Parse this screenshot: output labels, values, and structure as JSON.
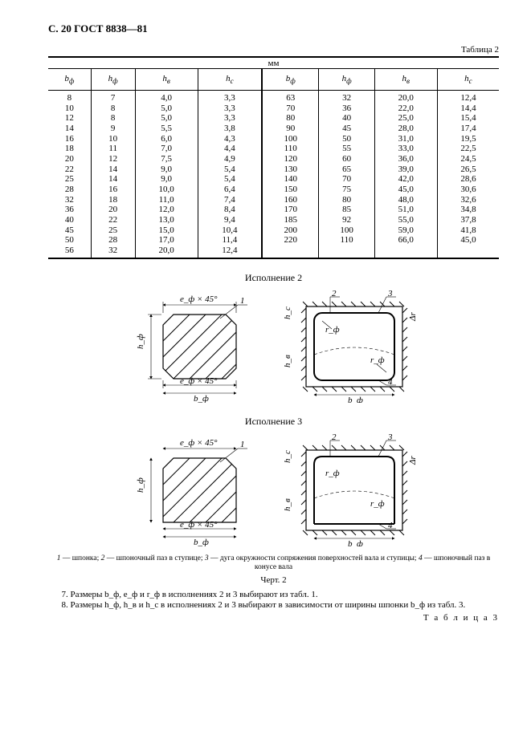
{
  "header": "С. 20 ГОСТ 8838—81",
  "table2": {
    "label": "Таблица 2",
    "unit": "мм",
    "columns": [
      "b_ф",
      "h_ф",
      "h_в",
      "h_с",
      "b_ф",
      "h_ф",
      "h_в",
      "h_с"
    ],
    "rows": [
      [
        "8",
        "7",
        "4,0",
        "3,3",
        "63",
        "32",
        "20,0",
        "12,4"
      ],
      [
        "10",
        "8",
        "5,0",
        "3,3",
        "70",
        "36",
        "22,0",
        "14,4"
      ],
      [
        "12",
        "8",
        "5,0",
        "3,3",
        "80",
        "40",
        "25,0",
        "15,4"
      ],
      [
        "14",
        "9",
        "5,5",
        "3,8",
        "90",
        "45",
        "28,0",
        "17,4"
      ],
      [
        "16",
        "10",
        "6,0",
        "4,3",
        "100",
        "50",
        "31,0",
        "19,5"
      ],
      [
        "18",
        "11",
        "7,0",
        "4,4",
        "110",
        "55",
        "33,0",
        "22,5"
      ],
      [
        "20",
        "12",
        "7,5",
        "4,9",
        "120",
        "60",
        "36,0",
        "24,5"
      ],
      [
        "22",
        "14",
        "9,0",
        "5,4",
        "130",
        "65",
        "39,0",
        "26,5"
      ],
      [
        "25",
        "14",
        "9,0",
        "5,4",
        "140",
        "70",
        "42,0",
        "28,6"
      ],
      [
        "28",
        "16",
        "10,0",
        "6,4",
        "150",
        "75",
        "45,0",
        "30,6"
      ],
      [
        "32",
        "18",
        "11,0",
        "7,4",
        "160",
        "80",
        "48,0",
        "32,6"
      ],
      [
        "36",
        "20",
        "12,0",
        "8,4",
        "170",
        "85",
        "51,0",
        "34,8"
      ],
      [
        "40",
        "22",
        "13,0",
        "9,4",
        "185",
        "92",
        "55,0",
        "37,8"
      ],
      [
        "45",
        "25",
        "15,0",
        "10,4",
        "200",
        "100",
        "59,0",
        "41,8"
      ],
      [
        "50",
        "28",
        "17,0",
        "11,4",
        "220",
        "110",
        "66,0",
        "45,0"
      ],
      [
        "56",
        "32",
        "20,0",
        "12,4",
        "",
        "",
        "",
        ""
      ]
    ]
  },
  "exec2_title": "Исполнение 2",
  "exec3_title": "Исполнение 3",
  "dims": {
    "e45_top": "e_ф × 45°",
    "e45_bot": "e_ф × 45°",
    "hphi": "h_ф",
    "bphi": "b_ф",
    "hc": "h_с",
    "hb": "h_в",
    "rphi": "r_ф",
    "dr": "Δr",
    "n1": "1",
    "n2": "2",
    "n3": "3",
    "n4": "4"
  },
  "caption": "1 — шпонка; 2 — шпоночный паз в ступице; 3 — дуга окружности сопряжения поверхностей вала и ступицы; 4 — шпоночный паз в конусе вала",
  "fig_label": "Черт. 2",
  "note7": "7.  Размеры b_ф, e_ф и r_ф в исполнениях 2 и 3 выбирают из табл. 1.",
  "note8": "8.  Размеры h_ф, h_в и h_с в исполнениях 2 и 3 выбирают в зависимости от ширины шпонки b_ф из табл. 3.",
  "table3_label": "Т а б л и ц а  3"
}
